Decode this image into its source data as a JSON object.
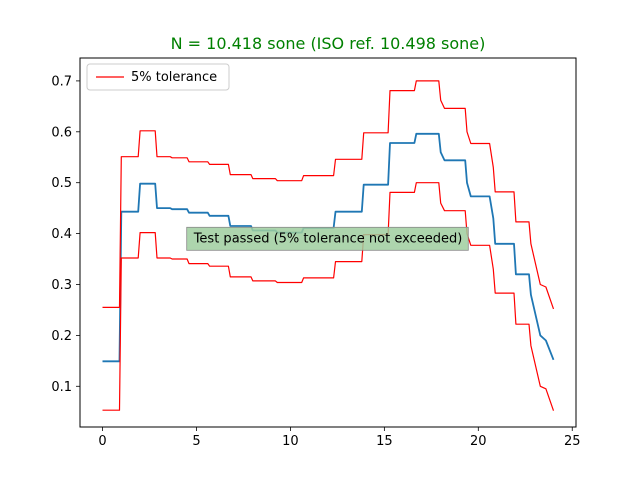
{
  "chart_data": {
    "type": "line",
    "title": "N = 10.418 sone (ISO ref. 10.498 sone)",
    "xlabel": "",
    "ylabel": "",
    "xlim": [
      -1.2,
      25.2
    ],
    "ylim": [
      0.02,
      0.745
    ],
    "x_ticks": [
      0,
      5,
      10,
      15,
      20,
      25
    ],
    "y_ticks": [
      0.1,
      0.2,
      0.3,
      0.4,
      0.5,
      0.6,
      0.7
    ],
    "grid": false,
    "legend": {
      "position": "top-left",
      "entries": [
        "5% tolerance"
      ]
    },
    "annotation": {
      "text": "Test passed (5% tolerance not exceeded)",
      "x": 12.0,
      "y": 0.377
    },
    "series": [
      {
        "role": "measured",
        "color": "#1f77b4",
        "x": [
          0,
          0.9,
          1.0,
          1.9,
          2.0,
          2.8,
          2.9,
          3.6,
          3.7,
          4.5,
          4.6,
          5.6,
          5.7,
          6.7,
          6.8,
          7.9,
          8.0,
          9.2,
          9.3,
          10.6,
          10.7,
          12.3,
          12.4,
          13.8,
          13.9,
          15.2,
          15.3,
          16.6,
          16.7,
          17.9,
          18.0,
          18.2,
          18.3,
          19.3,
          19.4,
          19.6,
          19.7,
          20.6,
          20.8,
          20.9,
          21.0,
          21.9,
          22.0,
          22.7,
          22.8,
          23.3,
          23.6,
          24.0
        ],
        "values": [
          0.149,
          0.149,
          0.443,
          0.443,
          0.498,
          0.498,
          0.45,
          0.45,
          0.448,
          0.448,
          0.441,
          0.441,
          0.435,
          0.435,
          0.415,
          0.415,
          0.406,
          0.406,
          0.402,
          0.402,
          0.411,
          0.411,
          0.443,
          0.443,
          0.496,
          0.496,
          0.578,
          0.578,
          0.596,
          0.596,
          0.56,
          0.544,
          0.544,
          0.544,
          0.5,
          0.473,
          0.473,
          0.473,
          0.43,
          0.38,
          0.38,
          0.38,
          0.32,
          0.32,
          0.28,
          0.2,
          0.19,
          0.152
        ]
      },
      {
        "role": "upper-tolerance",
        "name": "5% tolerance",
        "color": "#ff0000",
        "x": [
          0,
          0.9,
          1.0,
          1.9,
          2.0,
          2.8,
          2.9,
          3.6,
          3.7,
          4.5,
          4.6,
          5.6,
          5.7,
          6.7,
          6.8,
          7.9,
          8.0,
          9.2,
          9.3,
          10.6,
          10.7,
          12.3,
          12.4,
          13.8,
          13.9,
          15.2,
          15.3,
          16.6,
          16.7,
          17.9,
          18.0,
          18.2,
          18.3,
          19.3,
          19.4,
          19.6,
          19.7,
          20.6,
          20.8,
          20.9,
          21.0,
          21.9,
          22.0,
          22.7,
          22.8,
          23.3,
          23.6,
          24.0
        ],
        "values": [
          0.255,
          0.255,
          0.551,
          0.551,
          0.602,
          0.602,
          0.551,
          0.551,
          0.549,
          0.549,
          0.541,
          0.541,
          0.536,
          0.536,
          0.516,
          0.516,
          0.508,
          0.508,
          0.504,
          0.504,
          0.514,
          0.514,
          0.546,
          0.546,
          0.598,
          0.598,
          0.681,
          0.681,
          0.7,
          0.7,
          0.662,
          0.646,
          0.646,
          0.646,
          0.6,
          0.577,
          0.577,
          0.577,
          0.53,
          0.482,
          0.482,
          0.482,
          0.423,
          0.423,
          0.38,
          0.3,
          0.295,
          0.252
        ]
      },
      {
        "role": "lower-tolerance",
        "color": "#ff0000",
        "x": [
          0,
          0.9,
          1.0,
          1.9,
          2.0,
          2.8,
          2.9,
          3.6,
          3.7,
          4.5,
          4.6,
          5.6,
          5.7,
          6.7,
          6.8,
          7.9,
          8.0,
          9.2,
          9.3,
          10.6,
          10.7,
          12.3,
          12.4,
          13.8,
          13.9,
          15.2,
          15.3,
          16.6,
          16.7,
          17.9,
          18.0,
          18.2,
          18.3,
          19.3,
          19.4,
          19.6,
          19.7,
          20.6,
          20.8,
          20.9,
          21.0,
          21.9,
          22.0,
          22.7,
          22.8,
          23.3,
          23.6,
          24.0
        ],
        "values": [
          0.053,
          0.053,
          0.352,
          0.352,
          0.402,
          0.402,
          0.352,
          0.352,
          0.35,
          0.35,
          0.341,
          0.341,
          0.336,
          0.336,
          0.315,
          0.315,
          0.307,
          0.307,
          0.304,
          0.304,
          0.313,
          0.313,
          0.345,
          0.345,
          0.398,
          0.398,
          0.481,
          0.481,
          0.5,
          0.5,
          0.46,
          0.445,
          0.445,
          0.445,
          0.4,
          0.377,
          0.377,
          0.377,
          0.33,
          0.283,
          0.283,
          0.283,
          0.222,
          0.222,
          0.18,
          0.1,
          0.095,
          0.052
        ]
      }
    ]
  },
  "colors": {
    "title": "#008000",
    "annotation_box": "#9fce9f",
    "annotation_edge": "#888888",
    "axes_edge": "#000000"
  }
}
